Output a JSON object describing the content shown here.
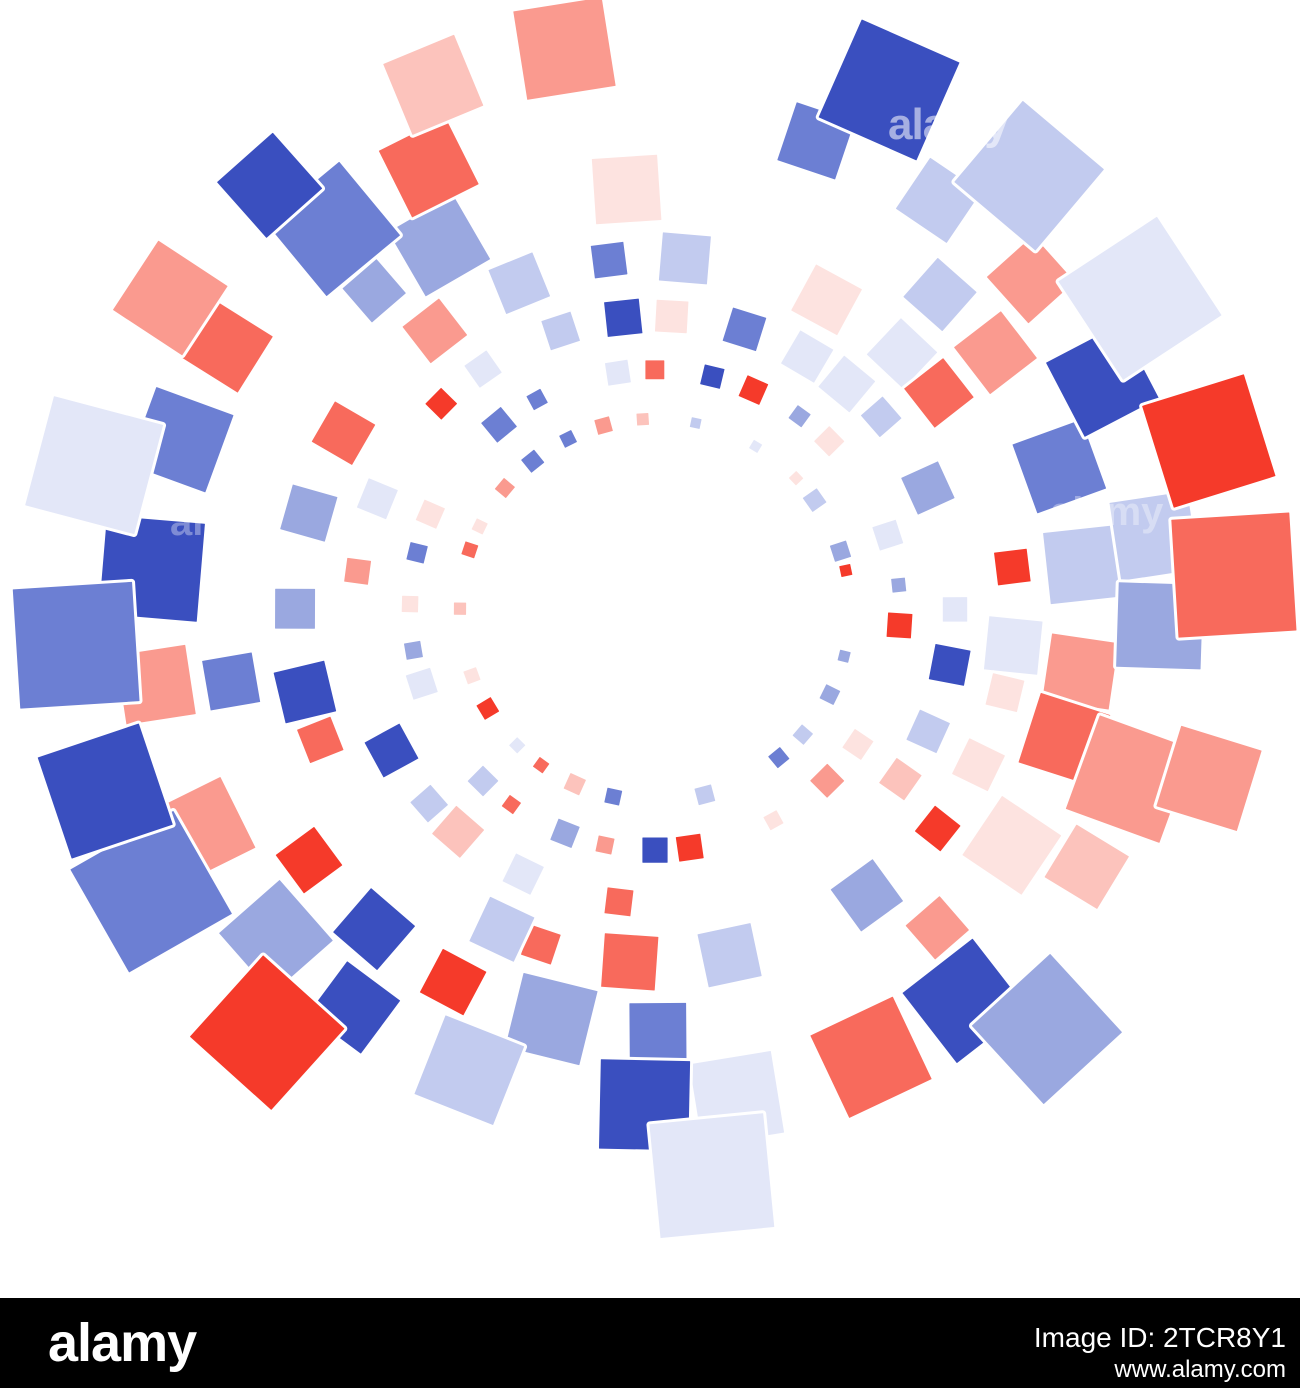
{
  "artwork": {
    "description_colors": {
      "red": "#f53a2a",
      "blue": "#3a4fbf",
      "background": "#ffffff"
    },
    "palette": [
      "#f53a2a",
      "#f86a5c",
      "#fa9a8f",
      "#fcc3bc",
      "#fde3e0",
      "#3a4fbf",
      "#6c7fd3",
      "#9aa8e0",
      "#c2cbef",
      "#e3e7f8"
    ]
  },
  "watermark": {
    "main": "alamy",
    "left": "alamy",
    "right": "alamy",
    "small": "a"
  },
  "footer": {
    "logo": "alamy",
    "image_id": "Image ID: 2TCR8Y1",
    "site": "www.alamy.com",
    "background": "#000000"
  }
}
